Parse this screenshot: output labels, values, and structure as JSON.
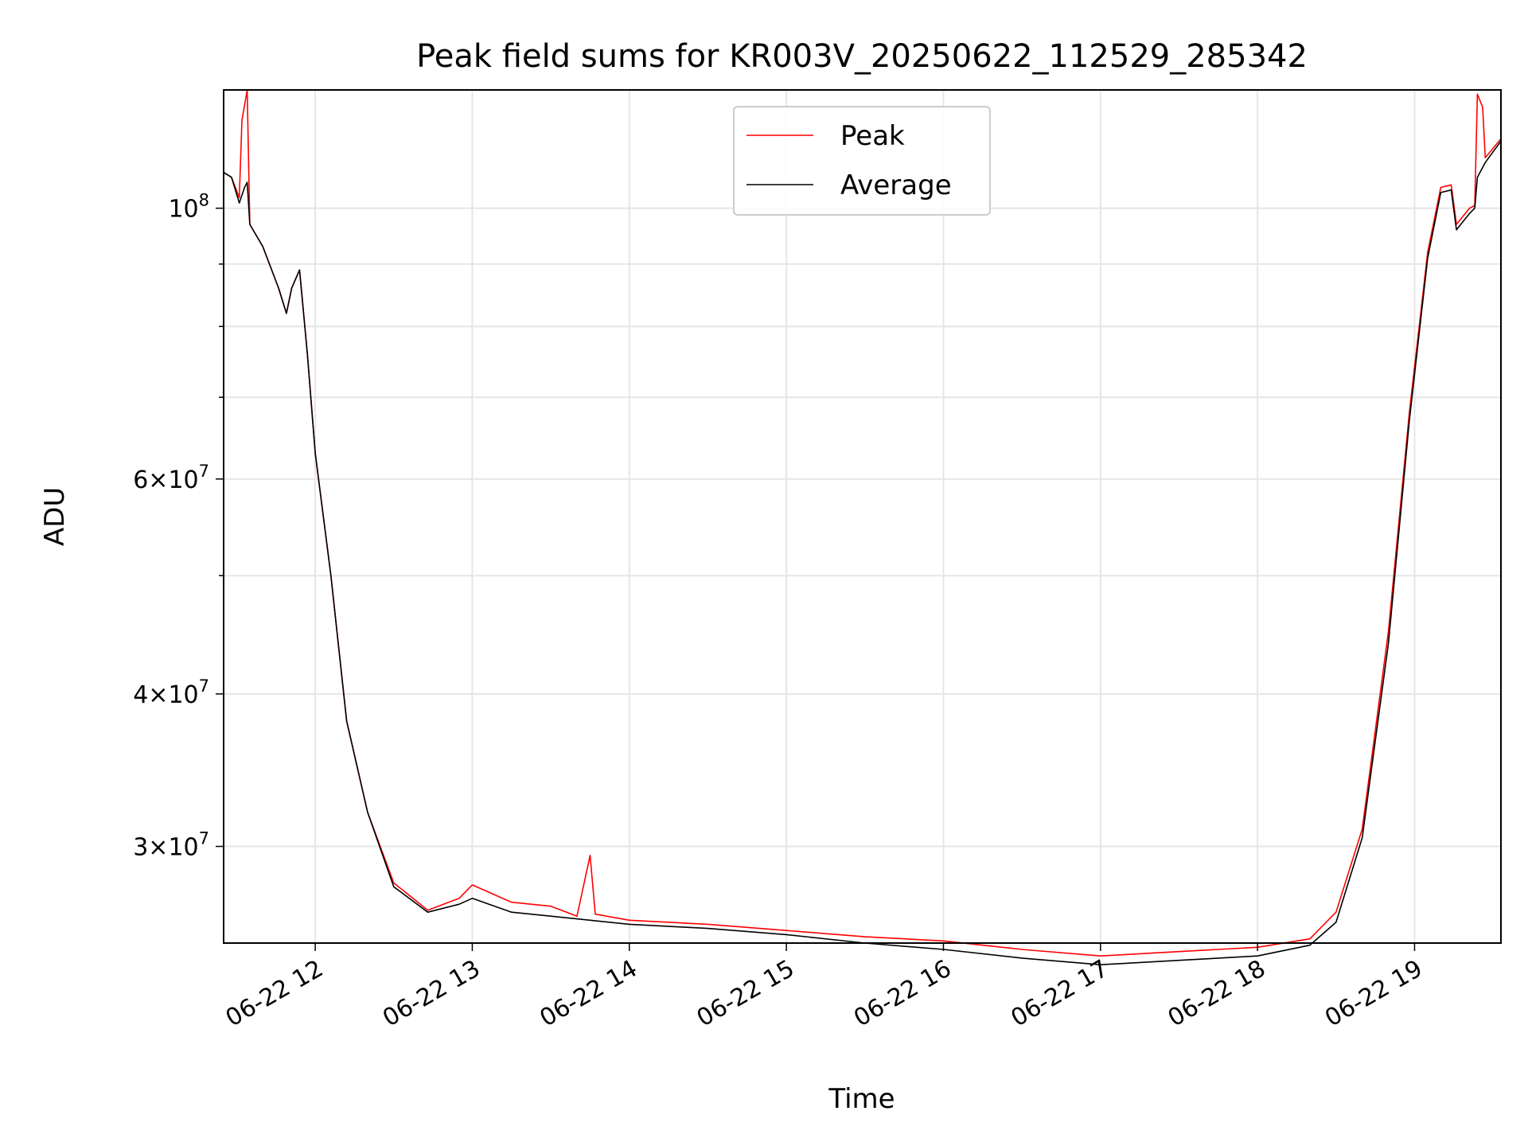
{
  "chart_data": {
    "type": "line",
    "title": "Peak field sums for KR003V_20250622_112529_285342",
    "xlabel": "Time",
    "ylabel": "ADU",
    "y_scale": "log",
    "grid": true,
    "legend_position": "top-center",
    "xlim": [
      "2025-06-22 11:25",
      "2025-06-22 19:33"
    ],
    "ylim": [
      25000000,
      125000000
    ],
    "x_ticks": [
      {
        "value": "2025-06-22 12:00",
        "label": "06-22 12"
      },
      {
        "value": "2025-06-22 13:00",
        "label": "06-22 13"
      },
      {
        "value": "2025-06-22 14:00",
        "label": "06-22 14"
      },
      {
        "value": "2025-06-22 15:00",
        "label": "06-22 15"
      },
      {
        "value": "2025-06-22 16:00",
        "label": "06-22 16"
      },
      {
        "value": "2025-06-22 17:00",
        "label": "06-22 17"
      },
      {
        "value": "2025-06-22 18:00",
        "label": "06-22 18"
      },
      {
        "value": "2025-06-22 19:00",
        "label": "06-22 19"
      }
    ],
    "y_ticks": [
      {
        "value": 30000000,
        "base": "3",
        "exp": "7"
      },
      {
        "value": 40000000,
        "base": "4",
        "exp": "7"
      },
      {
        "value": 60000000,
        "base": "6",
        "exp": "7"
      },
      {
        "value": 100000000,
        "base": "",
        "exp": "8"
      }
    ],
    "series": [
      {
        "name": "Peak",
        "color": "#ff0000",
        "points": [
          [
            "2025-06-22 11:25",
            107000000
          ],
          [
            "2025-06-22 11:28",
            106000000
          ],
          [
            "2025-06-22 11:31",
            102000000
          ],
          [
            "2025-06-22 11:32",
            118000000
          ],
          [
            "2025-06-22 11:34",
            125000000
          ],
          [
            "2025-06-22 11:35",
            97000000
          ],
          [
            "2025-06-22 11:40",
            93000000
          ],
          [
            "2025-06-22 11:46",
            86000000
          ],
          [
            "2025-06-22 11:49",
            82000000
          ],
          [
            "2025-06-22 11:51",
            86000000
          ],
          [
            "2025-06-22 11:54",
            89000000
          ],
          [
            "2025-06-22 11:57",
            76000000
          ],
          [
            "2025-06-22 12:00",
            63000000
          ],
          [
            "2025-06-22 12:06",
            50000000
          ],
          [
            "2025-06-22 12:12",
            38000000
          ],
          [
            "2025-06-22 12:20",
            32000000
          ],
          [
            "2025-06-22 12:30",
            28000000
          ],
          [
            "2025-06-22 12:43",
            26600000
          ],
          [
            "2025-06-22 12:55",
            27200000
          ],
          [
            "2025-06-22 13:00",
            27900000
          ],
          [
            "2025-06-22 13:15",
            27000000
          ],
          [
            "2025-06-22 13:30",
            26800000
          ],
          [
            "2025-06-22 13:40",
            26300000
          ],
          [
            "2025-06-22 13:45",
            29500000
          ],
          [
            "2025-06-22 13:47",
            26400000
          ],
          [
            "2025-06-22 14:00",
            26100000
          ],
          [
            "2025-06-22 14:30",
            25900000
          ],
          [
            "2025-06-22 15:00",
            25600000
          ],
          [
            "2025-06-22 15:30",
            25300000
          ],
          [
            "2025-06-22 16:00",
            25100000
          ],
          [
            "2025-06-22 16:30",
            24700000
          ],
          [
            "2025-06-22 17:00",
            24400000
          ],
          [
            "2025-06-22 17:30",
            24600000
          ],
          [
            "2025-06-22 18:00",
            24800000
          ],
          [
            "2025-06-22 18:20",
            25200000
          ],
          [
            "2025-06-22 18:30",
            26500000
          ],
          [
            "2025-06-22 18:40",
            31000000
          ],
          [
            "2025-06-22 18:50",
            45000000
          ],
          [
            "2025-06-22 18:58",
            68000000
          ],
          [
            "2025-06-22 19:05",
            92000000
          ],
          [
            "2025-06-22 19:10",
            104000000
          ],
          [
            "2025-06-22 19:14",
            104500000
          ],
          [
            "2025-06-22 19:16",
            97000000
          ],
          [
            "2025-06-22 19:21",
            100000000
          ],
          [
            "2025-06-22 19:23",
            100500000
          ],
          [
            "2025-06-22 19:24",
            124000000
          ],
          [
            "2025-06-22 19:26",
            121000000
          ],
          [
            "2025-06-22 19:27",
            110000000
          ],
          [
            "2025-06-22 19:33",
            114000000
          ]
        ]
      },
      {
        "name": "Average",
        "color": "#000000",
        "points": [
          [
            "2025-06-22 11:25",
            107000000
          ],
          [
            "2025-06-22 11:28",
            106000000
          ],
          [
            "2025-06-22 11:31",
            101000000
          ],
          [
            "2025-06-22 11:33",
            104000000
          ],
          [
            "2025-06-22 11:34",
            105000000
          ],
          [
            "2025-06-22 11:35",
            97000000
          ],
          [
            "2025-06-22 11:40",
            93000000
          ],
          [
            "2025-06-22 11:46",
            86000000
          ],
          [
            "2025-06-22 11:49",
            82000000
          ],
          [
            "2025-06-22 11:51",
            86000000
          ],
          [
            "2025-06-22 11:54",
            89000000
          ],
          [
            "2025-06-22 11:57",
            76000000
          ],
          [
            "2025-06-22 12:00",
            63000000
          ],
          [
            "2025-06-22 12:06",
            50000000
          ],
          [
            "2025-06-22 12:12",
            38000000
          ],
          [
            "2025-06-22 12:20",
            32000000
          ],
          [
            "2025-06-22 12:30",
            27800000
          ],
          [
            "2025-06-22 12:43",
            26500000
          ],
          [
            "2025-06-22 12:55",
            26900000
          ],
          [
            "2025-06-22 13:00",
            27200000
          ],
          [
            "2025-06-22 13:15",
            26500000
          ],
          [
            "2025-06-22 13:30",
            26300000
          ],
          [
            "2025-06-22 13:45",
            26100000
          ],
          [
            "2025-06-22 14:00",
            25900000
          ],
          [
            "2025-06-22 14:30",
            25700000
          ],
          [
            "2025-06-22 15:00",
            25400000
          ],
          [
            "2025-06-22 15:30",
            25000000
          ],
          [
            "2025-06-22 16:00",
            24700000
          ],
          [
            "2025-06-22 16:30",
            24300000
          ],
          [
            "2025-06-22 17:00",
            24000000
          ],
          [
            "2025-06-22 17:30",
            24200000
          ],
          [
            "2025-06-22 18:00",
            24400000
          ],
          [
            "2025-06-22 18:20",
            24900000
          ],
          [
            "2025-06-22 18:30",
            26000000
          ],
          [
            "2025-06-22 18:40",
            30500000
          ],
          [
            "2025-06-22 18:50",
            44000000
          ],
          [
            "2025-06-22 18:58",
            67000000
          ],
          [
            "2025-06-22 19:05",
            91000000
          ],
          [
            "2025-06-22 19:10",
            103000000
          ],
          [
            "2025-06-22 19:14",
            103500000
          ],
          [
            "2025-06-22 19:16",
            96000000
          ],
          [
            "2025-06-22 19:21",
            99000000
          ],
          [
            "2025-06-22 19:23",
            100000000
          ],
          [
            "2025-06-22 19:24",
            106000000
          ],
          [
            "2025-06-22 19:26",
            108000000
          ],
          [
            "2025-06-22 19:27",
            109000000
          ],
          [
            "2025-06-22 19:33",
            113500000
          ]
        ]
      }
    ]
  }
}
